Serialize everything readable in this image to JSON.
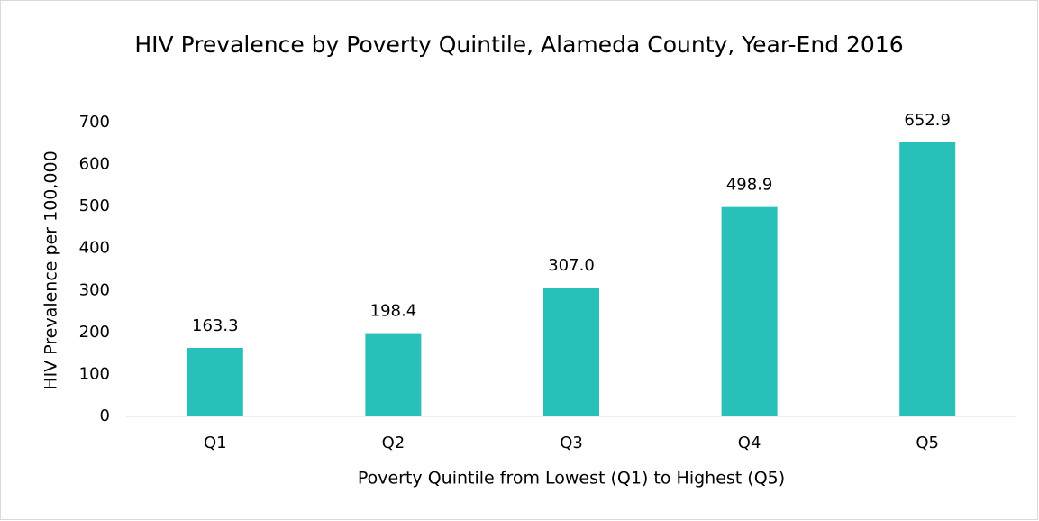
{
  "chart_data": {
    "type": "bar",
    "title": "HIV Prevalence by Poverty Quintile, Alameda County, Year-End 2016",
    "x_label": "Poverty Quintile from Lowest (Q1) to Highest (Q5)",
    "y_label": "HIV Prevalence per 100,000",
    "categories": [
      "Q1",
      "Q2",
      "Q3",
      "Q4",
      "Q5"
    ],
    "values": [
      163.3,
      198.4,
      307,
      498.9,
      652.9
    ],
    "value_labels": [
      "163.3",
      "198.4",
      "307.0",
      "498.9",
      "652.9"
    ],
    "color": "#29c0b9",
    "ylim": [
      0,
      700
    ],
    "yticks": [
      0,
      100,
      200,
      300,
      400,
      500,
      600,
      700
    ],
    "grid": false
  }
}
